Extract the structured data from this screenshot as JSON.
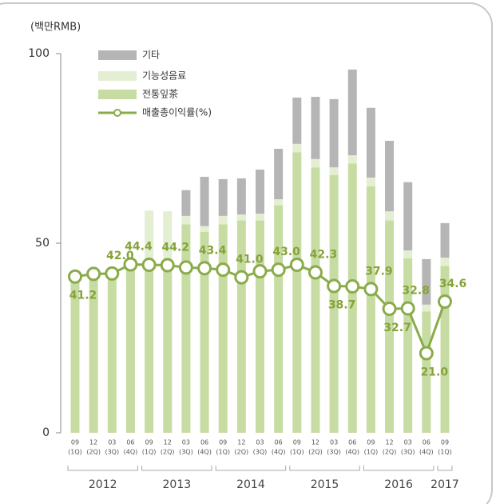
{
  "chart_data": {
    "type": "bar_line",
    "y_axis_label": "(백만RMB)",
    "categories": [
      "09",
      "12",
      "03",
      "06",
      "09",
      "12",
      "03",
      "06",
      "09",
      "12",
      "03",
      "06",
      "09",
      "12",
      "03",
      "06",
      "09",
      "12",
      "03",
      "06",
      "09"
    ],
    "quarter_labels": [
      "(1Q)",
      "(2Q)",
      "(3Q)",
      "(4Q)",
      "(1Q)",
      "(2Q)",
      "(3Q)",
      "(4Q)",
      "(1Q)",
      "(2Q)",
      "(3Q)",
      "(4Q)",
      "(1Q)",
      "(2Q)",
      "(3Q)",
      "(4Q)",
      "(1Q)",
      "(2Q)",
      "(3Q)",
      "(4Q)",
      "(1Q)"
    ],
    "years": [
      {
        "label": "2012",
        "count": 4
      },
      {
        "label": "2013",
        "count": 4
      },
      {
        "label": "2014",
        "count": 4
      },
      {
        "label": "2015",
        "count": 4
      },
      {
        "label": "2016",
        "count": 4
      },
      {
        "label": "2017",
        "count": 1
      }
    ],
    "series": [
      {
        "name": "전통잎茶",
        "color": "#c6dca2",
        "values": [
          40,
          41,
          42,
          44,
          44,
          44,
          55,
          53,
          55,
          56,
          56,
          60,
          74,
          70,
          68,
          71,
          65,
          56,
          46,
          32,
          44
        ]
      },
      {
        "name": "기능성음료",
        "color": "#e4eed3",
        "values": [
          0,
          0,
          0,
          0,
          14.6,
          14.4,
          2.2,
          1.5,
          2.2,
          1.6,
          1.8,
          1.6,
          2.2,
          2.2,
          2,
          2.2,
          2.3,
          2.4,
          2.1,
          1.8,
          2.2
        ]
      },
      {
        "name": "기타",
        "color": "#b5b5b5",
        "values": [
          0,
          0,
          0,
          0,
          0,
          0,
          6.8,
          13,
          9.7,
          9.5,
          11.6,
          13.3,
          12.2,
          16.4,
          18,
          22.6,
          18.4,
          18.6,
          18,
          12,
          9.1
        ]
      },
      {
        "name": "매출총이익률(%)",
        "type": "line",
        "color": "#8aab4a",
        "values": [
          41.2,
          41.9,
          42.0,
          44.4,
          44.3,
          44.2,
          43.6,
          43.4,
          43.0,
          41.0,
          42.6,
          43.0,
          44.3,
          42.3,
          38.7,
          38.6,
          37.9,
          32.7,
          32.8,
          21.0,
          34.6
        ],
        "value_labels": [
          "41.2",
          null,
          "42.0",
          "44.4",
          null,
          "44.2",
          null,
          "43.4",
          null,
          "41.0",
          null,
          "43.0",
          null,
          "42.3",
          "38.7",
          null,
          "37.9",
          "32.7",
          "32.8",
          "21.0",
          "34.6"
        ]
      }
    ],
    "ylim": [
      0,
      100
    ],
    "yticks": [
      0,
      50,
      100
    ]
  }
}
